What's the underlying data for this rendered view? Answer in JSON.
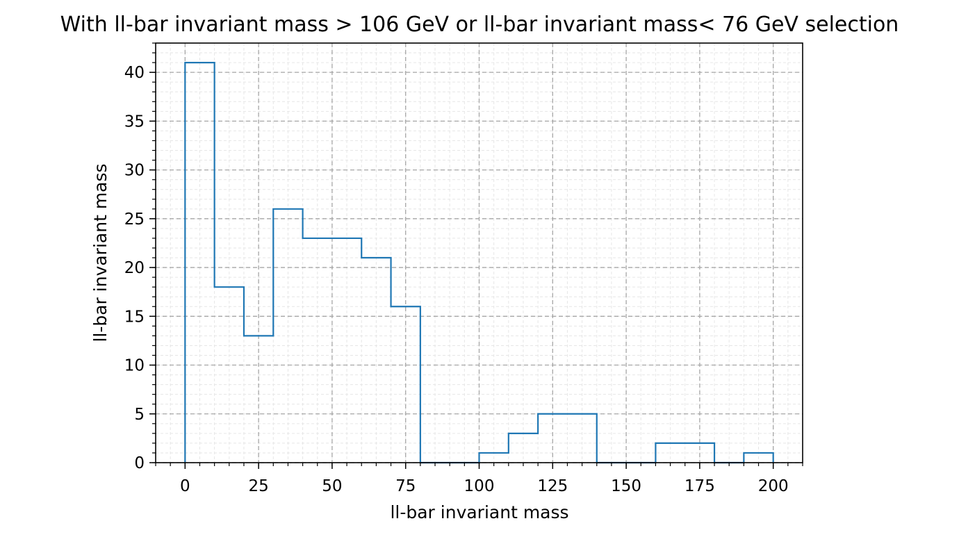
{
  "chart_data": {
    "type": "histogram",
    "title": "With ll-bar invariant mass > 106 GeV or ll-bar invariant mass< 76 GeV selection",
    "xlabel": "ll-bar invariant mass",
    "ylabel": "ll-bar invariant mass",
    "xlim": [
      -10,
      210
    ],
    "ylim": [
      0,
      43
    ],
    "xticks": [
      0,
      25,
      50,
      75,
      100,
      125,
      150,
      175,
      200
    ],
    "yticks": [
      0,
      5,
      10,
      15,
      20,
      25,
      30,
      35,
      40
    ],
    "grid": true,
    "minor_grid": true,
    "bin_edges": [
      0,
      10,
      20,
      30,
      40,
      50,
      60,
      70,
      80,
      90,
      100,
      110,
      120,
      130,
      140,
      150,
      160,
      170,
      180,
      190,
      200
    ],
    "counts": [
      41,
      18,
      13,
      26,
      23,
      23,
      21,
      16,
      0,
      0,
      1,
      3,
      5,
      5,
      0,
      0,
      2,
      2,
      0,
      1
    ],
    "line_color": "#1f77b4"
  }
}
